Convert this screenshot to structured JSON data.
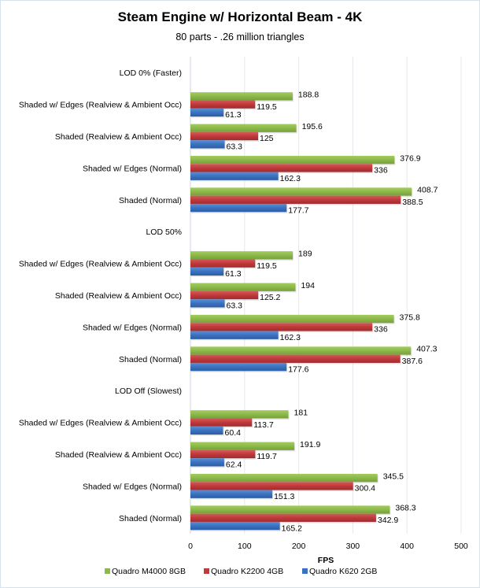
{
  "chart_data": {
    "type": "bar",
    "orientation": "horizontal",
    "title": "Steam Engine w/ Horizontal Beam - 4K",
    "subtitle": "80 parts - .26 million triangles",
    "xlabel": "FPS",
    "ylabel": "",
    "xlim": [
      0,
      500
    ],
    "xticks": [
      0,
      100,
      200,
      300,
      400,
      500
    ],
    "grid": true,
    "legend_position": "bottom",
    "categories": [
      "LOD 0% (Faster)",
      "Shaded w/ Edges (Realview & Ambient Occ)",
      "Shaded (Realview & Ambient Occ)",
      "Shaded w/ Edges (Normal)",
      "Shaded (Normal)",
      "LOD 50%",
      "Shaded w/ Edges (Realview & Ambient Occ)",
      "Shaded (Realview & Ambient Occ)",
      "Shaded w/ Edges (Normal)",
      "Shaded (Normal)",
      "LOD Off (Slowest)",
      "Shaded w/ Edges (Realview & Ambient Occ)",
      "Shaded (Realview & Ambient Occ)",
      "Shaded w/ Edges (Normal)",
      "Shaded (Normal)"
    ],
    "series": [
      {
        "name": "Quadro M4000 8GB",
        "color": "#8db84a",
        "values": [
          null,
          188.8,
          195.6,
          376.9,
          408.7,
          null,
          189,
          194,
          375.8,
          407.3,
          null,
          181,
          191.9,
          345.5,
          368.3
        ],
        "labels": [
          "",
          "188.8",
          "195.6",
          "376.9",
          "408.7",
          "",
          "189",
          "194",
          "375.8",
          "407.3",
          "",
          "181",
          "191.9",
          "345.5",
          "368.3"
        ]
      },
      {
        "name": "Quadro K2200 4GB",
        "color": "#c0393b",
        "values": [
          null,
          119.5,
          125,
          336,
          388.5,
          null,
          119.5,
          125.2,
          336,
          387.6,
          null,
          113.7,
          119.7,
          300.4,
          342.9
        ],
        "labels": [
          "",
          "119.5",
          "125",
          "336",
          "388.5",
          "",
          "119.5",
          "125.2",
          "336",
          "387.6",
          "",
          "113.7",
          "119.7",
          "300.4",
          "342.9"
        ]
      },
      {
        "name": "Quadro K620 2GB",
        "color": "#3a72c0",
        "values": [
          null,
          61.3,
          63.3,
          162.3,
          177.7,
          null,
          61.3,
          63.3,
          162.3,
          177.6,
          null,
          60.4,
          62.4,
          151.3,
          165.2
        ],
        "labels": [
          "",
          "61.3",
          "63.3",
          "162.3",
          "177.7",
          "",
          "61.3",
          "63.3",
          "162.3",
          "177.6",
          "",
          "60.4",
          "62.4",
          "151.3",
          "165.2"
        ]
      }
    ]
  }
}
